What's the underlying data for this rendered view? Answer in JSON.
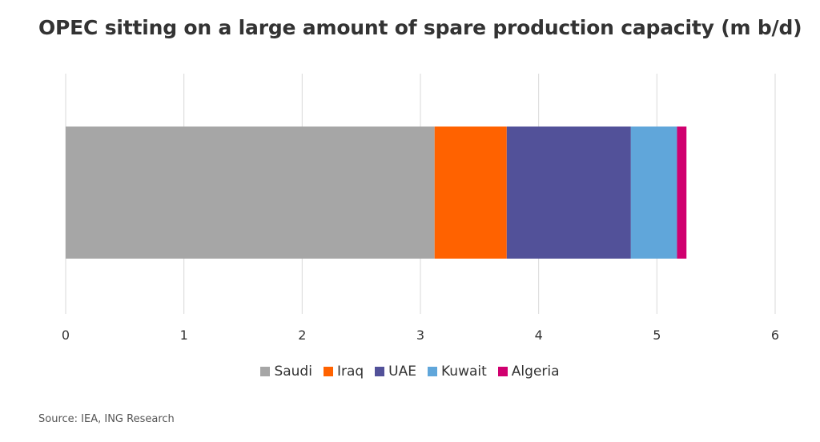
{
  "title": "OPEC sitting on a large amount of spare production capacity (m b/d)",
  "source": "Source: IEA, ING Research",
  "chart_data": {
    "type": "bar",
    "orientation": "horizontal",
    "stacked": true,
    "categories": [
      ""
    ],
    "series": [
      {
        "name": "Saudi",
        "values": [
          3.12
        ],
        "color": "#a6a6a6"
      },
      {
        "name": "Iraq",
        "values": [
          0.61
        ],
        "color": "#ff6200"
      },
      {
        "name": "UAE",
        "values": [
          1.05
        ],
        "color": "#525199"
      },
      {
        "name": "Kuwait",
        "values": [
          0.39
        ],
        "color": "#60a6da"
      },
      {
        "name": "Algeria",
        "values": [
          0.08
        ],
        "color": "#d0006f"
      }
    ],
    "xlim": [
      0,
      6
    ],
    "xticks": [
      0,
      1,
      2,
      3,
      4,
      5,
      6
    ],
    "xlabel": "",
    "ylabel": "",
    "grid": true,
    "legend_position": "bottom"
  }
}
